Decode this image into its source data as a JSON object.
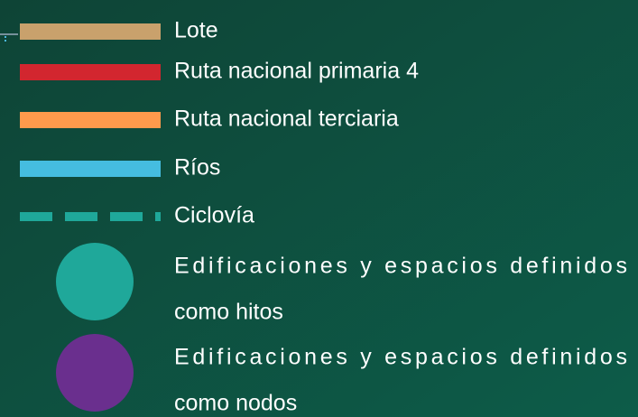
{
  "legend": {
    "items": [
      {
        "label": [
          "Lote"
        ],
        "color": "#c9a16c",
        "symbol": "bar"
      },
      {
        "label": [
          "Ruta nacional primaria 4"
        ],
        "color": "#d2262f",
        "symbol": "bar"
      },
      {
        "label": [
          "Ruta nacional terciaria"
        ],
        "color": "#ff9a4c",
        "symbol": "bar"
      },
      {
        "label": [
          "Ríos"
        ],
        "color": "#45bde0",
        "symbol": "bar"
      },
      {
        "label": [
          "Ciclovía"
        ],
        "color": "#1fa89a",
        "symbol": "dash"
      },
      {
        "label": [
          "Edificaciones y espacios definidos",
          "como hitos"
        ],
        "color": "#1fa89a",
        "symbol": "circle"
      },
      {
        "label": [
          "Edificaciones y espacios definidos",
          "como nodos"
        ],
        "color": "#6a2f8e",
        "symbol": "circle"
      }
    ]
  }
}
